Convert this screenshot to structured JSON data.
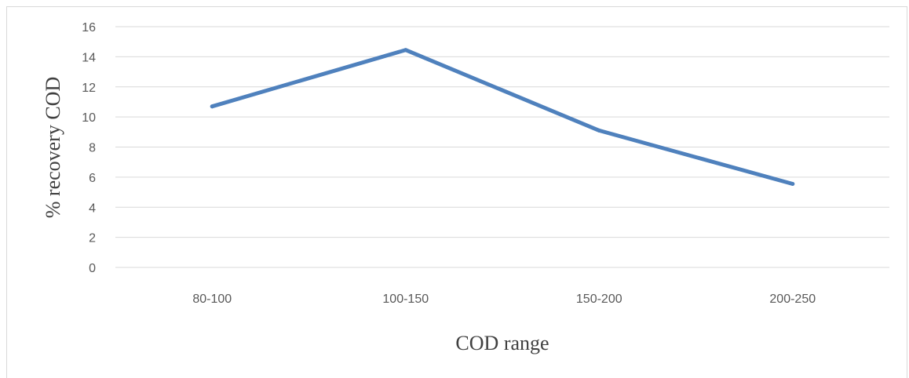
{
  "chart_data": {
    "type": "line",
    "categories": [
      "80-100",
      "100-150",
      "150-200",
      "200-250"
    ],
    "series": [
      {
        "values": [
          10.7,
          14.45,
          9.1,
          5.55
        ]
      }
    ],
    "xlabel": "COD range",
    "ylabel": "% recovery COD",
    "ylim": [
      0,
      16
    ],
    "yticks": [
      0,
      2,
      4,
      6,
      8,
      10,
      12,
      14,
      16
    ],
    "grid": true,
    "line_color": "#4f81bd",
    "grid_color": "#d9d9d9"
  }
}
